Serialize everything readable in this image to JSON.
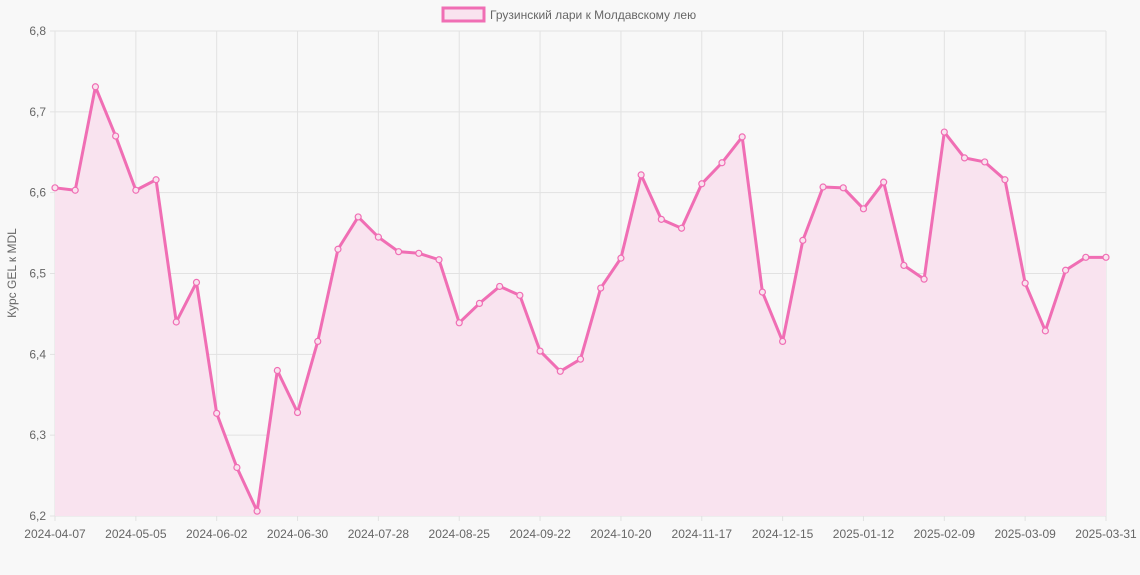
{
  "chart_data": {
    "type": "line",
    "title": "",
    "xlabel": "",
    "ylabel": "Курс GEL к MDL",
    "ylim": [
      6.2,
      6.8
    ],
    "yticks": [
      "6,2",
      "6,3",
      "6,4",
      "6,5",
      "6,6",
      "6,7",
      "6,8"
    ],
    "grid": true,
    "legend_placement": "top",
    "x": [
      "2024-04-07",
      "2024-04-14",
      "2024-04-21",
      "2024-04-28",
      "2024-05-05",
      "2024-05-12",
      "2024-05-19",
      "2024-05-26",
      "2024-06-02",
      "2024-06-09",
      "2024-06-16",
      "2024-06-23",
      "2024-06-30",
      "2024-07-07",
      "2024-07-14",
      "2024-07-21",
      "2024-07-28",
      "2024-08-04",
      "2024-08-11",
      "2024-08-18",
      "2024-08-25",
      "2024-09-01",
      "2024-09-08",
      "2024-09-15",
      "2024-09-22",
      "2024-09-29",
      "2024-10-06",
      "2024-10-13",
      "2024-10-20",
      "2024-10-27",
      "2024-11-03",
      "2024-11-10",
      "2024-11-17",
      "2024-11-24",
      "2024-12-01",
      "2024-12-08",
      "2024-12-15",
      "2024-12-22",
      "2024-12-29",
      "2025-01-05",
      "2025-01-12",
      "2025-01-19",
      "2025-01-26",
      "2025-02-02",
      "2025-02-09",
      "2025-02-16",
      "2025-02-23",
      "2025-03-02",
      "2025-03-09",
      "2025-03-16",
      "2025-03-23",
      "2025-03-30",
      "2025-03-31"
    ],
    "xtick_labels": [
      "2024-04-07",
      "2024-05-05",
      "2024-06-02",
      "2024-06-30",
      "2024-07-28",
      "2024-08-25",
      "2024-09-22",
      "2024-10-20",
      "2024-11-17",
      "2024-12-15",
      "2025-01-12",
      "2025-02-09",
      "2025-03-09",
      "2025-03-31"
    ],
    "series": [
      {
        "name": "Грузинский лари к Молдавскому лею",
        "color": "#f06eb4",
        "fill": "#f9e3ef",
        "values": [
          6.606,
          6.603,
          6.731,
          6.67,
          6.603,
          6.616,
          6.44,
          6.489,
          6.327,
          6.26,
          6.206,
          6.38,
          6.328,
          6.416,
          6.53,
          6.57,
          6.545,
          6.527,
          6.525,
          6.517,
          6.439,
          6.463,
          6.484,
          6.473,
          6.404,
          6.379,
          6.394,
          6.482,
          6.519,
          6.622,
          6.567,
          6.556,
          6.611,
          6.637,
          6.669,
          6.477,
          6.416,
          6.541,
          6.607,
          6.606,
          6.58,
          6.613,
          6.51,
          6.493,
          6.675,
          6.643,
          6.638,
          6.616,
          6.488,
          6.429,
          6.504,
          6.52,
          6.52
        ]
      }
    ]
  }
}
